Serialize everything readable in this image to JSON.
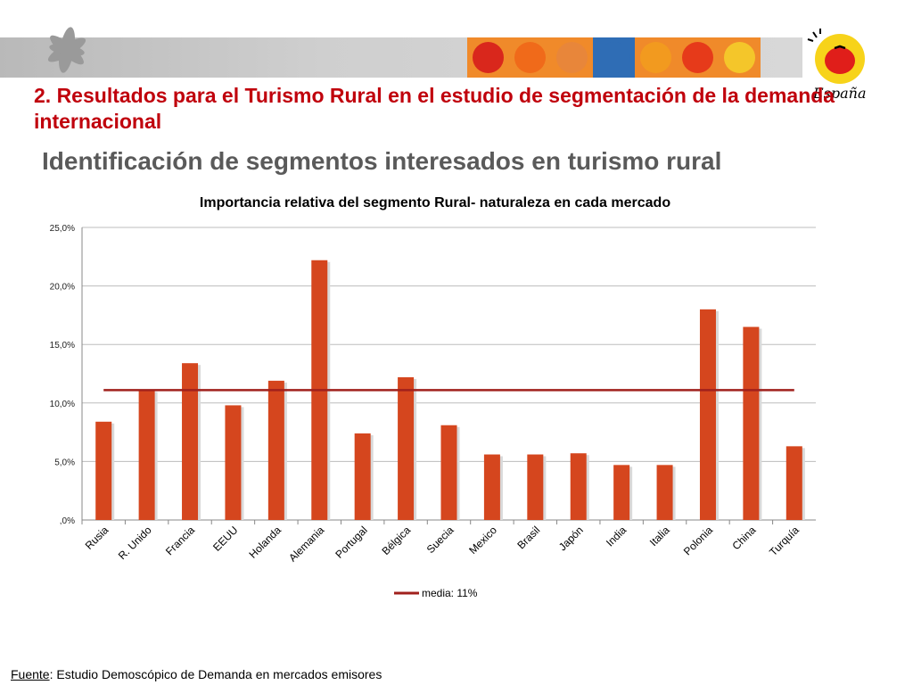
{
  "header": {
    "title": "2. Resultados para el Turismo Rural en el estudio de segmentación de la demanda internacional",
    "subtitle": "Identificación de segmentos interesados en turismo rural",
    "logo_text": "España",
    "tile_colors": [
      "#d9271c",
      "#f06a1a",
      "#e8863a",
      "#2f6db5",
      "#f29a1f",
      "#e63a1a",
      "#f4c62a"
    ]
  },
  "chart_data": {
    "type": "bar",
    "title": "Importancia relativa del segmento Rural- naturaleza en cada mercado",
    "categories": [
      "Rusia",
      "R. Unido",
      "Francia",
      "EEUU",
      "Holanda",
      "Alemania",
      "Portugal",
      "Bélgica",
      "Suecia",
      "Mexico",
      "Brasil",
      "Japón",
      "India",
      "Italia",
      "Polonia",
      "China",
      "Turquía"
    ],
    "values": [
      8.4,
      11.1,
      13.4,
      9.8,
      11.9,
      22.2,
      7.4,
      12.2,
      8.1,
      5.6,
      5.6,
      5.7,
      4.7,
      4.7,
      18.0,
      16.5,
      6.3
    ],
    "y_unit": "%",
    "ylim": [
      0,
      25
    ],
    "y_ticks": [
      0,
      5,
      10,
      15,
      20,
      25
    ],
    "y_tick_labels": [
      ",0%",
      "5,0%",
      "10,0%",
      "15,0%",
      "20,0%",
      "25,0%"
    ],
    "grid": true,
    "bar_color": "#d5461e",
    "reference_line": {
      "value": 11.1,
      "label": "media: 11%",
      "color": "#a0201c"
    },
    "legend_position": "bottom"
  },
  "footer": {
    "source_label": "Fuente",
    "source_text": ": Estudio Demoscópico de Demanda en mercados emisores"
  }
}
